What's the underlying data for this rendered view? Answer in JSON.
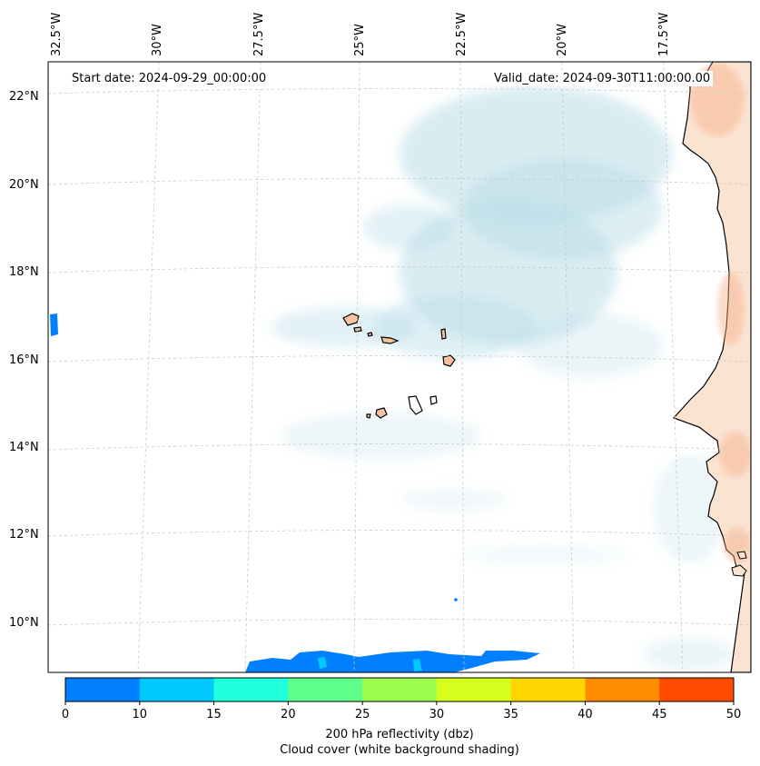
{
  "map": {
    "start_date": "Start date: 2024-09-29_00:00:00",
    "valid_date": "Valid_date: 2024-09-30T11:00:00.00",
    "lon_labels": [
      "32.5°W",
      "30°W",
      "27.5°W",
      "25°W",
      "22.5°W",
      "20°W",
      "17.5°W"
    ],
    "lat_labels": [
      "22°N",
      "20°N",
      "18°N",
      "16°N",
      "14°N",
      "12°N",
      "10°N"
    ],
    "land_color": "#fbe3d2",
    "cloud_color": "#b9dde8"
  },
  "colorbar": {
    "ticks": [
      "0",
      "10",
      "15",
      "20",
      "25",
      "30",
      "35",
      "40",
      "45",
      "50"
    ],
    "colors": [
      "#0080ff",
      "#00c8ff",
      "#1effdc",
      "#5fff8c",
      "#9cff50",
      "#d7ff1e",
      "#ffd700",
      "#ff8c00",
      "#ff4b00"
    ],
    "label_line1": "200 hPa reflectivity (dbz)",
    "label_line2": "Cloud cover (white background shading)"
  }
}
